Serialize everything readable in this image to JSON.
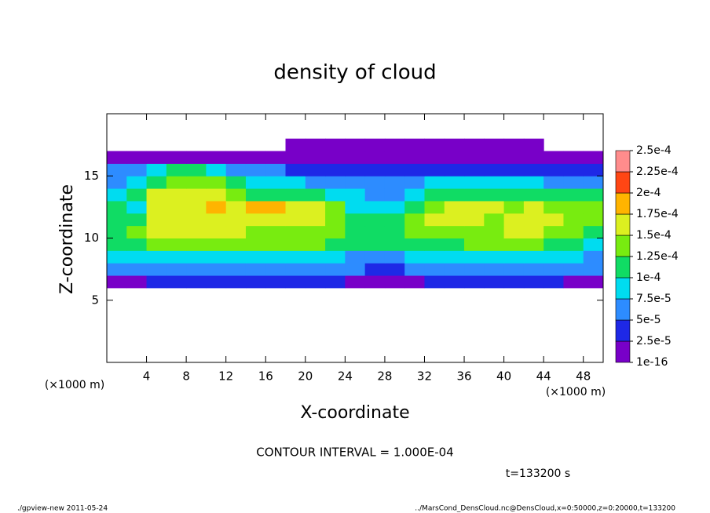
{
  "chart_data": {
    "type": "heatmap",
    "title": "density of cloud",
    "x_label": "X-coordinate",
    "y_label": "Z-coordinate",
    "x_unit_label": "(×1000 m)",
    "x_unit_label_right": "(×1000 m)",
    "contour_note": "CONTOUR INTERVAL = 1.000E-04",
    "time_note": "t=133200 s",
    "footer_left": "./gpview-new  2011-05-24",
    "footer_right": "../MarsCond_DensCloud.nc@DensCloud,x=0:50000,z=0:20000,t=133200",
    "xlim": [
      0,
      50
    ],
    "ylim": [
      0,
      20
    ],
    "xticks": [
      4,
      8,
      12,
      16,
      20,
      24,
      28,
      32,
      36,
      40,
      44,
      48
    ],
    "yticks": [
      5,
      10,
      15
    ],
    "levels": [
      {
        "value": 1e-16,
        "label": "1e-16"
      },
      {
        "value": 2.5e-05,
        "label": "2.5e-5"
      },
      {
        "value": 5e-05,
        "label": "5e-5"
      },
      {
        "value": 7.5e-05,
        "label": "7.5e-5"
      },
      {
        "value": 0.0001,
        "label": "1e-4"
      },
      {
        "value": 0.000125,
        "label": "1.25e-4"
      },
      {
        "value": 0.00015,
        "label": "1.5e-4"
      },
      {
        "value": 0.000175,
        "label": "1.75e-4"
      },
      {
        "value": 0.0002,
        "label": "2e-4"
      },
      {
        "value": 0.000225,
        "label": "2.25e-4"
      },
      {
        "value": 0.00025,
        "label": "2.5e-4"
      }
    ],
    "colors": [
      "#7800c8",
      "#1e28e6",
      "#2d8cff",
      "#00dcf0",
      "#10dc64",
      "#78ec10",
      "#dcf020",
      "#ffb400",
      "#ff4614",
      "#ff8c8c"
    ],
    "x": [
      1,
      3,
      5,
      7,
      9,
      11,
      13,
      15,
      17,
      19,
      21,
      23,
      25,
      27,
      29,
      31,
      33,
      35,
      37,
      39,
      41,
      43,
      45,
      47,
      49
    ],
    "y": [
      6.5,
      7.5,
      8.5,
      9.5,
      10.5,
      11.5,
      12.5,
      13.5,
      14.5,
      15.5,
      16.5,
      17.5
    ],
    "z": [
      [
        1e-05,
        2e-05,
        3e-05,
        3e-05,
        3e-05,
        3e-05,
        3e-05,
        3e-05,
        3e-05,
        3e-05,
        3e-05,
        3e-05,
        2e-05,
        2e-05,
        2e-05,
        2e-05,
        3e-05,
        3e-05,
        3e-05,
        3e-05,
        3e-05,
        3e-05,
        3e-05,
        2e-05,
        1e-05
      ],
      [
        6e-05,
        7e-05,
        6e-05,
        6e-05,
        6e-05,
        6e-05,
        6e-05,
        6e-05,
        6e-05,
        6e-05,
        6e-05,
        6e-05,
        5e-05,
        4e-05,
        4e-05,
        5e-05,
        6e-05,
        6e-05,
        6e-05,
        6e-05,
        6e-05,
        6e-05,
        6e-05,
        6e-05,
        5e-05
      ],
      [
        9e-05,
        9e-05,
        9e-05,
        9e-05,
        9e-05,
        9e-05,
        9e-05,
        9e-05,
        9e-05,
        9e-05,
        9e-05,
        9e-05,
        7e-05,
        6e-05,
        6e-05,
        8e-05,
        9e-05,
        9e-05,
        9e-05,
        9e-05,
        9e-05,
        9e-05,
        9e-05,
        8e-05,
        7e-05
      ],
      [
        0.00011,
        0.00012,
        0.00014,
        0.00014,
        0.00013,
        0.00013,
        0.00013,
        0.00013,
        0.00013,
        0.00013,
        0.00013,
        0.00012,
        0.00011,
        0.0001,
        0.00011,
        0.00011,
        0.00012,
        0.00012,
        0.00013,
        0.00013,
        0.00013,
        0.00013,
        0.00012,
        0.00011,
        9e-05
      ],
      [
        0.00012,
        0.00013,
        0.00015,
        0.00016,
        0.00015,
        0.00015,
        0.00015,
        0.00014,
        0.00014,
        0.00014,
        0.00014,
        0.00013,
        0.00012,
        0.00011,
        0.00012,
        0.00013,
        0.00014,
        0.00014,
        0.00014,
        0.00014,
        0.00015,
        0.00015,
        0.00014,
        0.00013,
        0.00012
      ],
      [
        0.00012,
        0.0001,
        0.00016,
        0.00017,
        0.00017,
        0.00016,
        0.00015,
        0.00015,
        0.00015,
        0.00015,
        0.00015,
        0.00014,
        0.00011,
        0.0001,
        0.00012,
        0.00013,
        0.00015,
        0.00015,
        0.00015,
        0.00014,
        0.00015,
        0.00015,
        0.00015,
        0.00013,
        0.00013
      ],
      [
        0.00012,
        8e-05,
        0.00016,
        0.00017,
        0.00017,
        0.00018,
        0.00017,
        0.00018,
        0.00018,
        0.00016,
        0.00016,
        0.00013,
        9e-05,
        8e-05,
        9e-05,
        0.00012,
        0.00014,
        0.00017,
        0.00016,
        0.00015,
        0.00014,
        0.00015,
        0.00014,
        0.00013,
        0.00013
      ],
      [
        9e-05,
        0.0001,
        0.00015,
        0.00016,
        0.00016,
        0.00015,
        0.00014,
        0.00012,
        0.00011,
        0.0001,
        0.0001,
        9e-05,
        8e-05,
        7e-05,
        7e-05,
        9e-05,
        0.00011,
        0.00012,
        0.00012,
        0.00011,
        0.00011,
        0.00011,
        0.0001,
        0.0001,
        0.0001
      ],
      [
        7e-05,
        8e-05,
        0.00012,
        0.00014,
        0.00014,
        0.00013,
        0.00012,
        9e-05,
        8e-05,
        8e-05,
        7e-05,
        6e-05,
        6e-05,
        6e-05,
        6e-05,
        7e-05,
        8e-05,
        8e-05,
        8e-05,
        8e-05,
        8e-05,
        8e-05,
        7e-05,
        7e-05,
        7e-05
      ],
      [
        5e-05,
        6e-05,
        8e-05,
        0.0001,
        0.0001,
        9e-05,
        7e-05,
        5e-05,
        5e-05,
        4e-05,
        4e-05,
        4e-05,
        3e-05,
        3e-05,
        4e-05,
        4e-05,
        4e-05,
        4e-05,
        3e-05,
        3e-05,
        4e-05,
        4e-05,
        4e-05,
        4e-05,
        4e-05
      ],
      [
        1e-05,
        1e-05,
        1e-05,
        1e-05,
        1e-05,
        1e-05,
        1e-05,
        1e-05,
        1e-05,
        1e-05,
        1e-05,
        1e-05,
        1e-05,
        1e-05,
        1e-05,
        1e-05,
        1e-05,
        1e-05,
        1e-05,
        1e-05,
        1e-05,
        1e-05,
        1e-05,
        1e-05,
        1e-05
      ],
      [
        null,
        null,
        null,
        null,
        null,
        null,
        null,
        null,
        null,
        1e-05,
        1e-05,
        1e-05,
        1e-05,
        1e-05,
        1e-05,
        1e-05,
        1e-05,
        1e-05,
        1e-05,
        1e-05,
        1e-05,
        1e-05,
        null,
        null,
        null
      ]
    ]
  }
}
